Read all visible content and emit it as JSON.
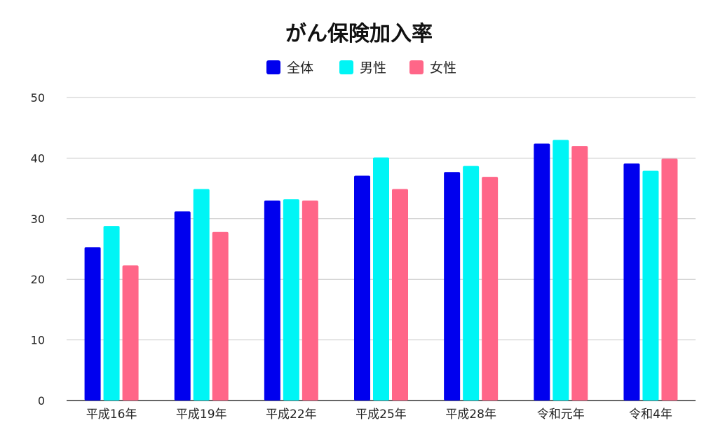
{
  "chart_data": {
    "type": "bar",
    "title": "がん保険加入率",
    "xlabel": "",
    "ylabel": "",
    "categories": [
      "平成16年",
      "平成19年",
      "平成22年",
      "平成25年",
      "平成28年",
      "令和元年",
      "令和4年"
    ],
    "series": [
      {
        "name": "全体",
        "color": "#0000ee",
        "values": [
          25.3,
          31.2,
          33.0,
          37.1,
          37.7,
          42.4,
          39.1
        ]
      },
      {
        "name": "男性",
        "color": "#00f5f5",
        "values": [
          28.8,
          34.9,
          33.2,
          40.1,
          38.7,
          43.0,
          37.9
        ]
      },
      {
        "name": "女性",
        "color": "#ff6688",
        "values": [
          22.3,
          27.8,
          33.0,
          34.9,
          36.9,
          42.0,
          39.9
        ]
      }
    ],
    "ylim": [
      0,
      50
    ],
    "yticks": [
      0,
      10,
      20,
      30,
      40,
      50
    ],
    "grid": true,
    "legend_position": "top-center"
  }
}
